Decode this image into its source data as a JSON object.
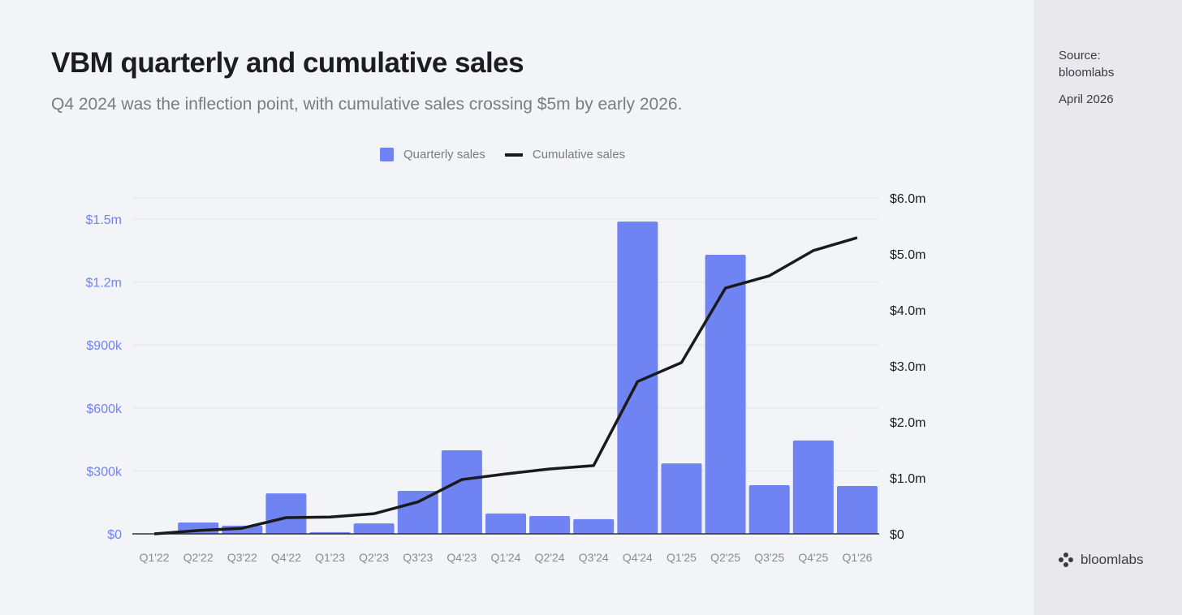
{
  "header": {
    "title": "VBM quarterly and cumulative sales",
    "subtitle": "Q4 2024 was the inflection point, with cumulative sales crossing $5m by early 2026."
  },
  "sidebar": {
    "source_label": "Source:",
    "source": "bloomlabs",
    "date": "April 2026",
    "logo_text": "bloomlabs"
  },
  "colors": {
    "bar": "#7083f3",
    "line": "#1a1a1a",
    "left_axis": "#7083f3",
    "right_axis": "#1c1c22"
  },
  "chart_data": {
    "type": "bar",
    "title": "VBM quarterly and cumulative sales",
    "legend": {
      "position": "top-center",
      "entries": [
        "Quarterly sales",
        "Cumulative sales"
      ]
    },
    "categories": [
      "Q1'22",
      "Q2'22",
      "Q3'22",
      "Q4'22",
      "Q1'23",
      "Q2'23",
      "Q3'23",
      "Q4'23",
      "Q1'24",
      "Q2'24",
      "Q3'24",
      "Q4'24",
      "Q1'25",
      "Q2'25",
      "Q3'25",
      "Q4'25",
      "Q1'26"
    ],
    "series": [
      {
        "name": "Quarterly sales",
        "type": "bar",
        "axis": "left",
        "values": [
          0,
          54000,
          39000,
          193000,
          8000,
          50000,
          205000,
          398000,
          97000,
          85000,
          70000,
          1488000,
          336000,
          1330000,
          232000,
          445000,
          228000
        ]
      },
      {
        "name": "Cumulative sales",
        "type": "line",
        "axis": "right",
        "values": [
          0,
          60000,
          100000,
          290000,
          300000,
          360000,
          570000,
          970000,
          1070000,
          1160000,
          1220000,
          2720000,
          3060000,
          4390000,
          4610000,
          5060000,
          5290000
        ]
      }
    ],
    "left_axis": {
      "ylim": [
        0,
        1500000
      ],
      "ticks": [
        0,
        300000,
        600000,
        900000,
        1200000,
        1500000
      ],
      "tick_labels": [
        "$0",
        "$300k",
        "$600k",
        "$900k",
        "$1.2m",
        "$1.5m"
      ]
    },
    "right_axis": {
      "ylim": [
        0,
        6000000
      ],
      "ticks": [
        0,
        1000000,
        2000000,
        3000000,
        4000000,
        5000000,
        6000000
      ],
      "tick_labels": [
        "$0",
        "$1.0m",
        "$2.0m",
        "$3.0m",
        "$4.0m",
        "$5.0m",
        "$6.0m"
      ]
    },
    "grid": true
  }
}
